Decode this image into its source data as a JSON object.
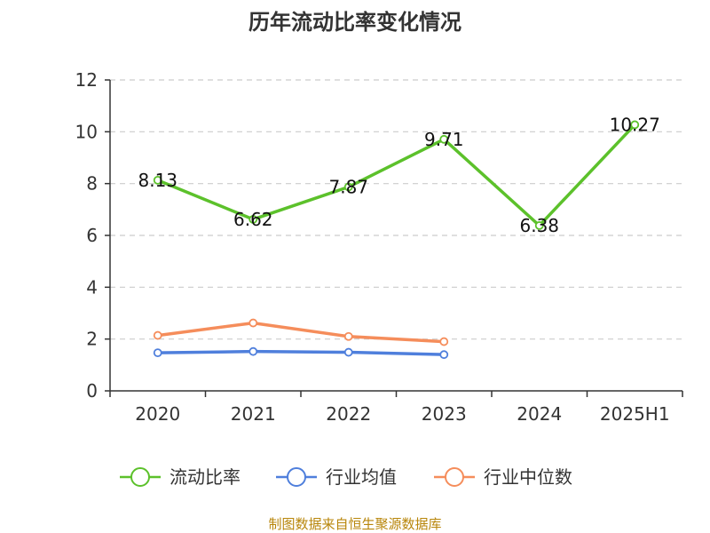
{
  "chart_data": {
    "type": "line",
    "title": "历年流动比率变化情况",
    "categories": [
      "2020",
      "2021",
      "2022",
      "2023",
      "2024",
      "2025H1"
    ],
    "ylim": [
      0,
      12
    ],
    "yticks": [
      "0",
      "2",
      "4",
      "6",
      "8",
      "10",
      "12"
    ],
    "grid": true,
    "legend_position": "bottom",
    "series": [
      {
        "name": "流动比率",
        "color": "#5cc12b",
        "values": [
          8.13,
          6.62,
          7.87,
          9.71,
          6.38,
          10.27
        ],
        "labels": [
          "8.13",
          "6.62",
          "7.87",
          "9.71",
          "6.38",
          "10.27"
        ]
      },
      {
        "name": "行业均值",
        "color": "#4f7fdc",
        "values": [
          1.47,
          1.52,
          1.49,
          1.4,
          null,
          null
        ]
      },
      {
        "name": "行业中位数",
        "color": "#f58d5b",
        "values": [
          2.14,
          2.62,
          2.1,
          1.9,
          null,
          null
        ]
      }
    ]
  },
  "source": "制图数据来自恒生聚源数据库"
}
